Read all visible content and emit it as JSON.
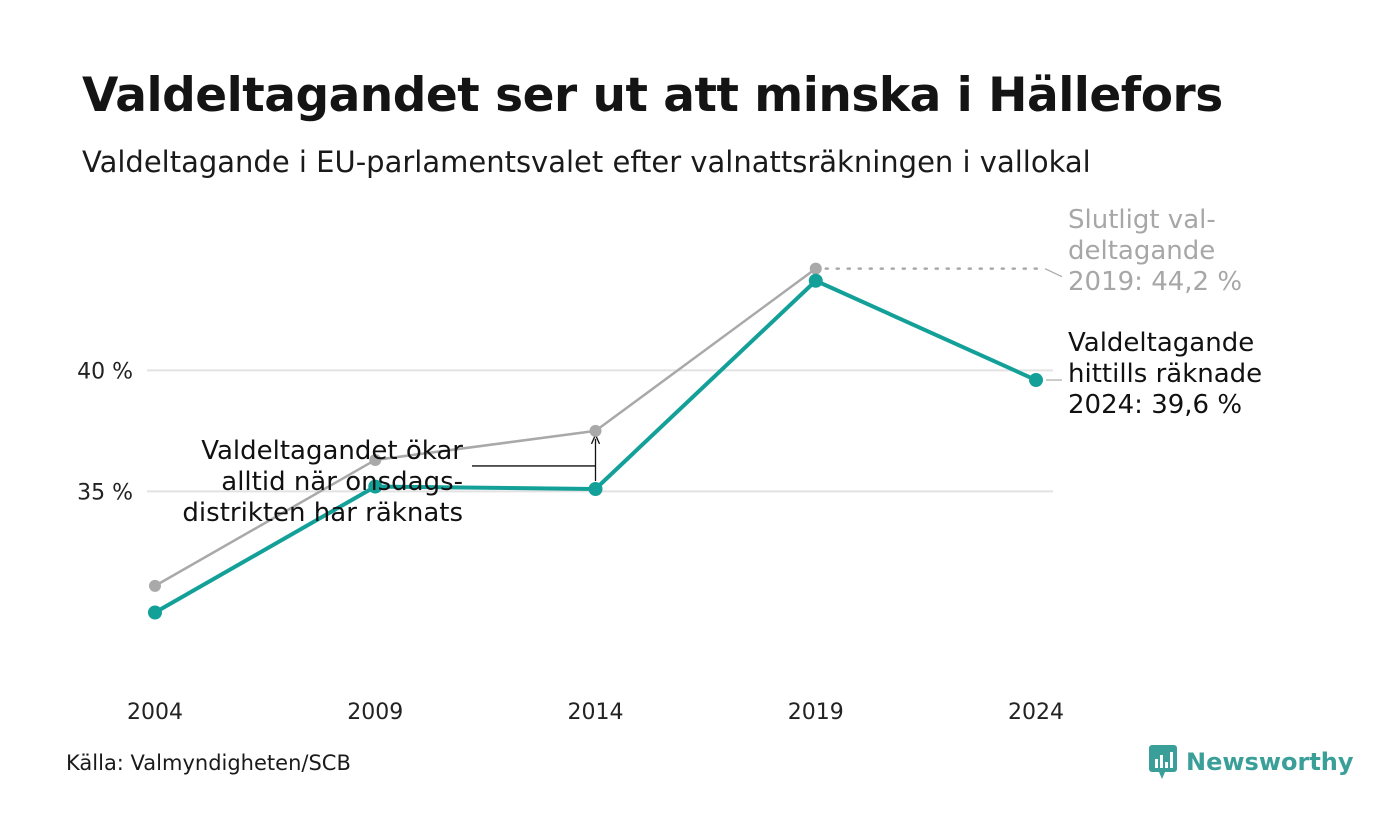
{
  "title": "Valdeltagandet ser ut att minska i Hällefors",
  "subtitle": "Valdeltagande i EU-parlamentsvalet efter valnattsräkningen i vallokal",
  "source": "Källa: Valmyndigheten/SCB",
  "brand": {
    "name": "Newsworthy",
    "icon": "newsworthy-logo-icon",
    "color": "#3a9f98"
  },
  "annotations": {
    "final_2019": [
      "Slutligt val-",
      "deltagande",
      "2019: 44,2 %"
    ],
    "current_2024": [
      "Valdeltagande",
      "hittills räknade",
      "2024: 39,6 %"
    ],
    "onsdag_note": [
      "Valdeltagandet ökar",
      "alltid när onsdags-",
      "distrikten har räknats"
    ]
  },
  "colors": {
    "election_night": "#13a098",
    "final": "#a9a9a9",
    "grid": "#e2e2e2",
    "text": "#111111"
  },
  "chart_data": {
    "type": "line",
    "x": [
      2004,
      2009,
      2014,
      2019,
      2024
    ],
    "xtick_labels": [
      "2004",
      "2009",
      "2014",
      "2019",
      "2024"
    ],
    "yticks": [
      35,
      40
    ],
    "ytick_labels": [
      "35 %",
      "40 %"
    ],
    "ylim": [
      26.8,
      47.2
    ],
    "grid": "horizontal",
    "series": [
      {
        "key": "final",
        "color": "#a9a9a9",
        "values": [
          31.1,
          36.3,
          37.5,
          44.2,
          null
        ]
      },
      {
        "key": "election_night",
        "color": "#13a098",
        "values": [
          30.0,
          35.2,
          35.1,
          43.7,
          39.6
        ]
      }
    ]
  }
}
